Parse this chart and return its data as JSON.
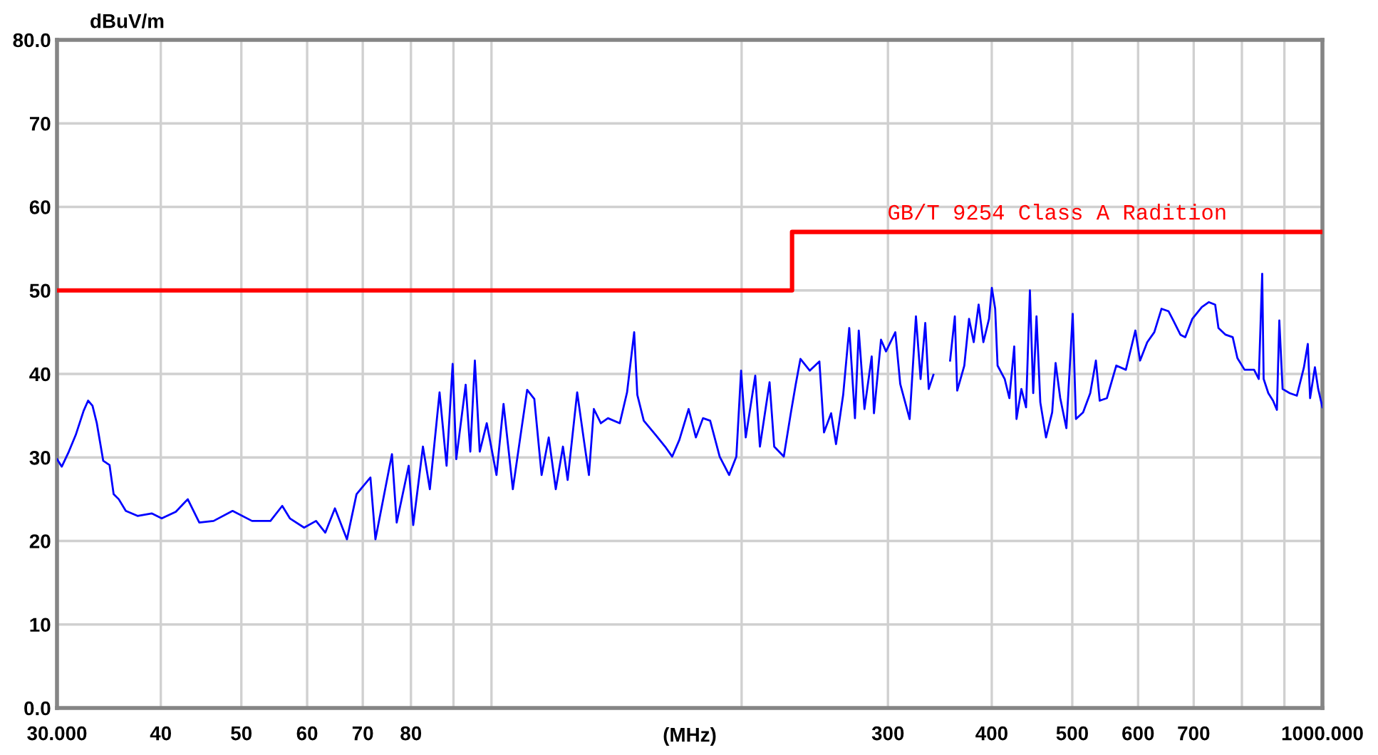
{
  "chart_data": {
    "type": "line",
    "xlabel": "(MHz)",
    "ylabel": "dBuV/m",
    "log": "x",
    "grid": true,
    "xlim": [
      30,
      1000
    ],
    "xticks": [
      {
        "value": 30,
        "label": "30.000"
      },
      40,
      50,
      60,
      70,
      80,
      {
        "value": 90,
        "label": null
      },
      {
        "value": 100,
        "label": null
      },
      {
        "value": 200,
        "label": null
      },
      300,
      400,
      500,
      600,
      700,
      {
        "value": 800,
        "label": null
      },
      {
        "value": 900,
        "label": null
      },
      {
        "value": 1000,
        "label": "1000.000"
      }
    ],
    "ylim": [
      0,
      80
    ],
    "yticks": [
      {
        "value": 0,
        "label": "0.0"
      },
      10,
      20,
      30,
      40,
      50,
      60,
      70,
      {
        "value": 80,
        "label": "80.0"
      }
    ],
    "series": [
      {
        "type": "step",
        "name": "GB/T 9254 Class A Radition",
        "color": "#ff0000",
        "x": [
          30,
          230,
          1000
        ],
        "values": [
          50,
          57,
          57
        ]
      },
      {
        "color": "#0000ff",
        "x": [
          30,
          30.4,
          31.0,
          31.6,
          32.3,
          32.7,
          33.1,
          33.5,
          34.1,
          34.7,
          35.1,
          35.6,
          36.3,
          37.5,
          39.0,
          40.1,
          41.7,
          43.1,
          44.5,
          46.3,
          48.8,
          51.5,
          54.2,
          56.0,
          57.2,
          59.5,
          61.5,
          63.1,
          64.8,
          67.0,
          68.8,
          71.5,
          72.5,
          75.9,
          76.9,
          79.5,
          80.5,
          82.7,
          84.3,
          86.6,
          88.3,
          89.8,
          90.7,
          93.1,
          94.3,
          95.5,
          96.8,
          98.7,
          101.4,
          103.4,
          106.1,
          108.3,
          110.4,
          112.6,
          114.9,
          117.2,
          119.5,
          121.9,
          123.5,
          126.8,
          129.3,
          131.0,
          132.8,
          135.4,
          138.1,
          142.7,
          145.6,
          148.5,
          149.8,
          152.5,
          157.6,
          161.8,
          165.0,
          168.3,
          172.7,
          176.2,
          179.7,
          183.3,
          188.2,
          193.2,
          197.1,
          199.7,
          202.3,
          207.7,
          210.4,
          216.1,
          218.9,
          224.8,
          229.2,
          232.3,
          235.4,
          241.6,
          248.1,
          251.3,
          256.3,
          259.8,
          265.0,
          269.5,
          273.8,
          276.7,
          281.1,
          286.8,
          288.6,
          294.3,
          298.4,
          306.2,
          310.4,
          318.6,
          324.2,
          328.4,
          332.7,
          335.9,
          340.3,
          345,
          356.4,
          361.1,
          363.5,
          370.7,
          375.6,
          380.5,
          385.7,
          390.8,
          397.0,
          400.1,
          403.8,
          406.5,
          414.6,
          420.0,
          425.7,
          428.4,
          434.2,
          439.9,
          444.6,
          448.7,
          452.8,
          457.6,
          464.9,
          472.9,
          477.4,
          483.6,
          491.9,
          500.6,
          505.1,
          515.2,
          525.5,
          533.8,
          539.5,
          550.3,
          564.8,
          580.0,
          595.5,
          603.3,
          615.4,
          627.6,
          640.2,
          652.9,
          661.5,
          674.7,
          683.8,
          697.4,
          715.9,
          730.1,
          742.9,
          749.7,
          764.6,
          779.9,
          790.1,
          805.9,
          827.5,
          838.3,
          846.3,
          849.7,
          860.8,
          872.1,
          881.5,
          887.4,
          895.5,
          913.4,
          931.6,
          950.1,
          960.3,
          966.4,
          979.4,
          988.4,
          1000
        ],
        "values": [
          29.8,
          28.9,
          30.7,
          32.7,
          35.6,
          36.8,
          36.2,
          34.1,
          29.6,
          29.1,
          25.6,
          25.0,
          23.6,
          23.0,
          23.3,
          22.7,
          23.5,
          25.0,
          22.2,
          22.4,
          23.6,
          22.4,
          22.4,
          24.2,
          22.7,
          21.6,
          22.4,
          21.0,
          23.9,
          20.2,
          25.6,
          27.6,
          20.2,
          30.4,
          22.2,
          29.0,
          21.9,
          31.3,
          26.2,
          37.8,
          29.0,
          41.2,
          29.8,
          38.7,
          30.7,
          41.6,
          30.7,
          34.1,
          27.9,
          36.4,
          26.2,
          32.4,
          38.1,
          37.0,
          27.9,
          32.4,
          26.2,
          31.3,
          27.3,
          37.8,
          31.8,
          27.9,
          35.8,
          34.1,
          34.7,
          34.1,
          37.8,
          45.0,
          37.5,
          34.4,
          32.7,
          31.3,
          30.1,
          32.1,
          35.8,
          32.4,
          34.7,
          34.4,
          30.1,
          27.9,
          30.1,
          40.4,
          32.4,
          39.8,
          31.3,
          39.0,
          31.3,
          30.1,
          35.3,
          38.7,
          41.8,
          40.4,
          41.5,
          33.0,
          35.3,
          31.6,
          37.5,
          45.5,
          34.7,
          45.2,
          35.8,
          42.1,
          35.3,
          44.1,
          42.7,
          45.0,
          38.8,
          34.6,
          46.9,
          39.4,
          46.1,
          38.2,
          39.9,
          null,
          41.6,
          46.9,
          38.0,
          41.0,
          46.6,
          43.8,
          48.3,
          43.8,
          46.6,
          50.3,
          47.8,
          41.0,
          39.4,
          37.1,
          43.3,
          34.6,
          38.2,
          36.0,
          50.0,
          37.7,
          46.9,
          36.6,
          32.4,
          35.4,
          41.3,
          37.1,
          33.5,
          47.2,
          34.6,
          35.4,
          37.7,
          41.6,
          36.8,
          37.1,
          41.0,
          40.5,
          45.2,
          41.6,
          43.8,
          45.0,
          47.8,
          47.5,
          46.4,
          44.7,
          44.4,
          46.6,
          48.0,
          48.6,
          48.3,
          45.5,
          44.7,
          44.4,
          41.9,
          40.5,
          40.5,
          39.4,
          52.0,
          39.4,
          37.7,
          36.8,
          35.7,
          46.4,
          38.2,
          37.7,
          37.4,
          40.8,
          43.6,
          37.1,
          40.8,
          38.2,
          36.0
        ]
      }
    ]
  }
}
